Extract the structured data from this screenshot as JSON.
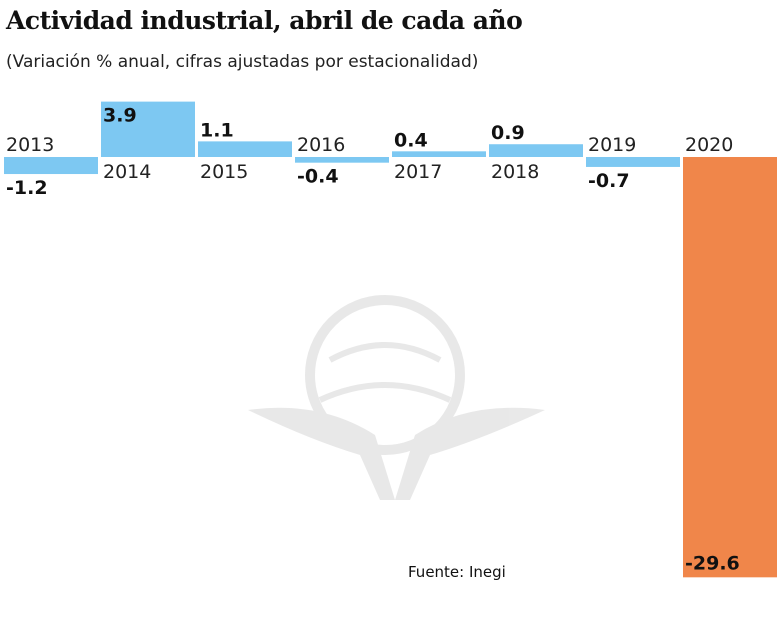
{
  "chart_data": {
    "type": "bar",
    "title": "Actividad industrial, abril de cada año",
    "subtitle": "(Variación % anual, cifras ajustadas por estacionalidad)",
    "categories": [
      "2013",
      "2014",
      "2015",
      "2016",
      "2017",
      "2018",
      "2019",
      "2020"
    ],
    "values": [
      -1.2,
      3.9,
      1.1,
      -0.4,
      0.4,
      0.9,
      -0.7,
      -29.6
    ],
    "value_labels": [
      "-1.2",
      "3.9",
      "1.1",
      "-0.4",
      "0.4",
      "0.9",
      "-0.7",
      "-29.6"
    ],
    "colors": {
      "default": "#7dc8f2",
      "highlight": "#f0864a"
    },
    "highlight_category": "2020",
    "grid": false,
    "source": "Fuente: Inegi"
  }
}
